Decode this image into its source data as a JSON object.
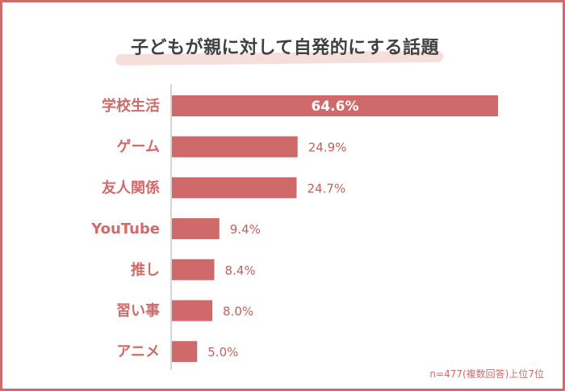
{
  "title": "子どもが親に対して自発的にする話題",
  "note": "n=477(複数回答)上位7位",
  "colors": {
    "bar": "#d06a6a",
    "accent": "#cf6b6b",
    "axis": "#c8c8c8"
  },
  "chart_data": {
    "type": "bar",
    "orientation": "horizontal",
    "categories": [
      "学校生活",
      "ゲーム",
      "友人関係",
      "YouTube",
      "推し",
      "習い事",
      "アニメ"
    ],
    "values": [
      64.6,
      24.9,
      24.7,
      9.4,
      8.4,
      8.0,
      5.0
    ],
    "value_labels": [
      "64.6%",
      "24.9%",
      "24.7%",
      "9.4%",
      "8.4%",
      "8.0%",
      "5.0%"
    ],
    "xlim": [
      0,
      64.6
    ],
    "title": "子どもが親に対して自発的にする話題",
    "grid": false
  }
}
